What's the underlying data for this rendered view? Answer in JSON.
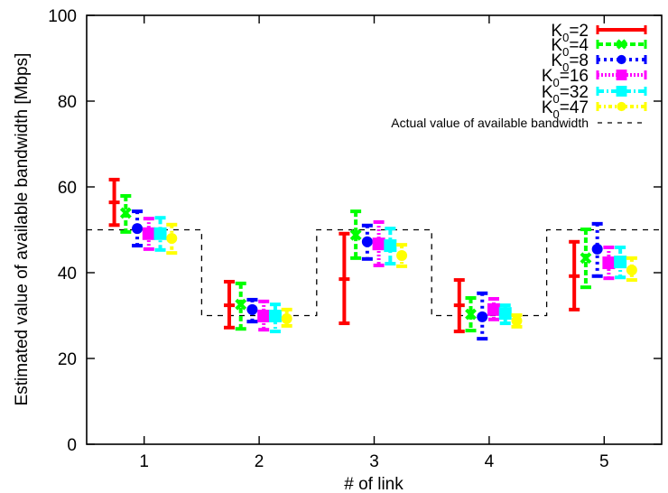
{
  "chart_data": {
    "type": "errorbar",
    "title": "",
    "xlabel": "# of link",
    "ylabel": "Estimated value of available bandwidth [Mbps]",
    "xlim": [
      0.5,
      5.5
    ],
    "ylim": [
      0,
      100
    ],
    "xticks": [
      1,
      2,
      3,
      4,
      5
    ],
    "yticks": [
      0,
      20,
      40,
      60,
      80,
      100
    ],
    "grid": false,
    "legend_position": "top-right",
    "categories": [
      "1",
      "2",
      "3",
      "4",
      "5"
    ],
    "series": [
      {
        "name": "K0=2",
        "label_main": "K",
        "label_sub": "0",
        "label_rest": "=2",
        "color": "#ff0000",
        "marker": "plus",
        "dash": "solid",
        "mean": [
          56.4,
          32.4,
          38.5,
          32.4,
          39.2
        ],
        "upper": [
          61.7,
          37.9,
          49.1,
          38.3,
          47.2
        ],
        "lower": [
          51.1,
          27.2,
          28.2,
          26.3,
          31.4
        ]
      },
      {
        "name": "K0=4",
        "label_main": "K",
        "label_sub": "0",
        "label_rest": "=4",
        "color": "#00ff00",
        "marker": "cross",
        "dash": "dashed",
        "mean": [
          53.9,
          32.6,
          48.8,
          30.3,
          43.4
        ],
        "upper": [
          57.9,
          37.5,
          54.3,
          34.1,
          50.1
        ],
        "lower": [
          49.5,
          26.9,
          43.4,
          26.5,
          36.6
        ]
      },
      {
        "name": "K0=8",
        "label_main": "K",
        "label_sub": "0",
        "label_rest": "=8",
        "color": "#0000ff",
        "marker": "circle",
        "dash": "dotted",
        "mean": [
          50.3,
          31.4,
          47.2,
          29.7,
          45.5
        ],
        "upper": [
          54.3,
          33.7,
          51.0,
          35.2,
          51.4
        ],
        "lower": [
          46.3,
          28.6,
          43.2,
          24.6,
          39.2
        ]
      },
      {
        "name": "K0=16",
        "label_main": "K",
        "label_sub": "0",
        "label_rest": "=16",
        "color": "#ff00ff",
        "marker": "square",
        "dash": "dense",
        "mean": [
          49.1,
          29.9,
          46.7,
          31.4,
          42.3
        ],
        "upper": [
          52.6,
          33.3,
          51.8,
          33.9,
          45.9
        ],
        "lower": [
          45.5,
          26.7,
          41.7,
          29.1,
          38.7
        ]
      },
      {
        "name": "K0=32",
        "label_main": "K",
        "label_sub": "0",
        "label_rest": "=32",
        "color": "#00ffff",
        "marker": "square",
        "dash": "dashdot",
        "mean": [
          49.1,
          29.9,
          46.3,
          30.5,
          42.5
        ],
        "upper": [
          52.8,
          32.6,
          50.3,
          32.4,
          45.9
        ],
        "lower": [
          45.3,
          26.3,
          42.1,
          28.2,
          38.9
        ]
      },
      {
        "name": "K0=47",
        "label_main": "K",
        "label_sub": "0",
        "label_rest": "=47",
        "color": "#ffff00",
        "marker": "circle",
        "dash": "dashdotdot",
        "mean": [
          48.0,
          29.3,
          44.0,
          28.8,
          40.6
        ],
        "upper": [
          51.2,
          31.4,
          46.5,
          30.1,
          43.4
        ],
        "lower": [
          44.6,
          27.6,
          41.5,
          27.4,
          38.3
        ]
      }
    ],
    "reference_line": {
      "name": "Actual value of available bandwidth",
      "color": "#000000",
      "dash": "dashed",
      "type": "step",
      "values": [
        50,
        30,
        50,
        30,
        50
      ]
    }
  }
}
